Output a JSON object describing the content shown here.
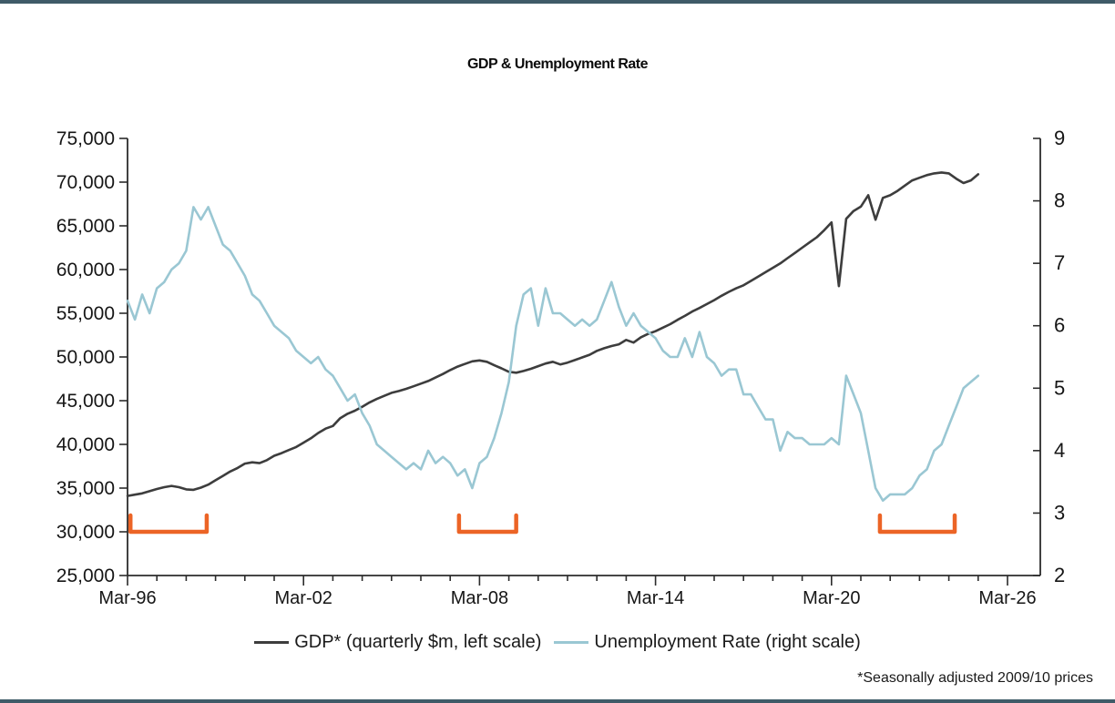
{
  "page": {
    "title": "GDP & Unemployment Rate",
    "footnote": "*Seasonally adjusted 2009/10 prices",
    "border_color": "#3f5b68",
    "background": "#ffffff"
  },
  "legend": {
    "items": [
      {
        "label": "GDP* (quarterly $m, left scale)",
        "color": "#3d3d3d"
      },
      {
        "label": "Unemployment Rate (right scale)",
        "color": "#9ac7d3"
      }
    ]
  },
  "chart_data": {
    "type": "line",
    "title": "GDP & Unemployment Rate",
    "frequency": "quarterly",
    "start_year": 1996,
    "start_quarter": "Mar",
    "x_axis": {
      "tick_labels": [
        "Mar-96",
        "Mar-02",
        "Mar-08",
        "Mar-14",
        "Mar-20",
        "Mar-26"
      ],
      "major_tick_interval_years": 6,
      "minor_tick_interval_years": 1,
      "first_year": 1996,
      "last_tick_year": 2026
    },
    "left_axis": {
      "title": "GDP* (quarterly $m)",
      "min": 25000,
      "max": 75000,
      "step": 5000,
      "tick_labels": [
        "25,000",
        "30,000",
        "35,000",
        "40,000",
        "45,000",
        "50,000",
        "55,000",
        "60,000",
        "65,000",
        "70,000",
        "75,000"
      ]
    },
    "right_axis": {
      "title": "Unemployment Rate (%)",
      "min": 2,
      "max": 9,
      "step": 1,
      "tick_labels": [
        "2",
        "3",
        "4",
        "5",
        "6",
        "7",
        "8",
        "9"
      ]
    },
    "grid": false,
    "legend_position": "bottom",
    "series": [
      {
        "name": "GDP* (quarterly $m, left scale)",
        "axis": "left",
        "color": "#3d3d3d",
        "values": [
          34100,
          34250,
          34400,
          34650,
          34900,
          35100,
          35250,
          35100,
          34850,
          34800,
          35050,
          35400,
          35900,
          36400,
          36900,
          37300,
          37800,
          37950,
          37850,
          38200,
          38700,
          39000,
          39350,
          39700,
          40200,
          40700,
          41300,
          41800,
          42100,
          43000,
          43500,
          43850,
          44300,
          44800,
          45200,
          45550,
          45900,
          46100,
          46350,
          46650,
          46950,
          47250,
          47650,
          48050,
          48500,
          48900,
          49200,
          49500,
          49600,
          49450,
          49050,
          48700,
          48300,
          48200,
          48400,
          48650,
          48950,
          49250,
          49450,
          49150,
          49350,
          49650,
          49950,
          50250,
          50700,
          51000,
          51250,
          51450,
          51950,
          51650,
          52250,
          52650,
          52950,
          53350,
          53750,
          54250,
          54700,
          55200,
          55600,
          56050,
          56500,
          57000,
          57450,
          57850,
          58200,
          58700,
          59200,
          59700,
          60200,
          60700,
          61300,
          61900,
          62500,
          63100,
          63700,
          64500,
          65400,
          58100,
          65800,
          66700,
          67200,
          68500,
          65700,
          68200,
          68500,
          69000,
          69600,
          70200,
          70500,
          70800,
          71000,
          71100,
          71000,
          70400,
          69900,
          70200,
          70900
        ]
      },
      {
        "name": "Unemployment Rate (right scale)",
        "axis": "right",
        "color": "#9ac7d3",
        "values": [
          6.4,
          6.1,
          6.5,
          6.2,
          6.6,
          6.7,
          6.9,
          7.0,
          7.2,
          7.9,
          7.7,
          7.9,
          7.6,
          7.3,
          7.2,
          7.0,
          6.8,
          6.5,
          6.4,
          6.2,
          6.0,
          5.9,
          5.8,
          5.6,
          5.5,
          5.4,
          5.5,
          5.3,
          5.2,
          5.0,
          4.8,
          4.9,
          4.6,
          4.4,
          4.1,
          4.0,
          3.9,
          3.8,
          3.7,
          3.8,
          3.7,
          4.0,
          3.8,
          3.9,
          3.8,
          3.6,
          3.7,
          3.4,
          3.8,
          3.9,
          4.2,
          4.6,
          5.1,
          6.0,
          6.5,
          6.6,
          6.0,
          6.6,
          6.2,
          6.2,
          6.1,
          6.0,
          6.1,
          6.0,
          6.1,
          6.4,
          6.7,
          6.3,
          6.0,
          6.2,
          6.0,
          5.9,
          5.8,
          5.6,
          5.5,
          5.5,
          5.8,
          5.5,
          5.9,
          5.5,
          5.4,
          5.2,
          5.3,
          5.3,
          4.9,
          4.9,
          4.7,
          4.5,
          4.5,
          4.0,
          4.3,
          4.2,
          4.2,
          4.1,
          4.1,
          4.1,
          4.2,
          4.1,
          5.2,
          4.9,
          4.6,
          4.0,
          3.4,
          3.2,
          3.3,
          3.3,
          3.3,
          3.4,
          3.6,
          3.7,
          4.0,
          4.1,
          4.4,
          4.7,
          5.0,
          5.1,
          5.2
        ]
      }
    ],
    "recession_brackets": {
      "color": "#ec6426",
      "baseline_value_left_axis": 30000,
      "periods": [
        {
          "from": 1996.1,
          "to": 1998.7
        },
        {
          "from": 2007.3,
          "to": 2009.25
        },
        {
          "from": 2021.65,
          "to": 2024.2
        }
      ]
    }
  }
}
